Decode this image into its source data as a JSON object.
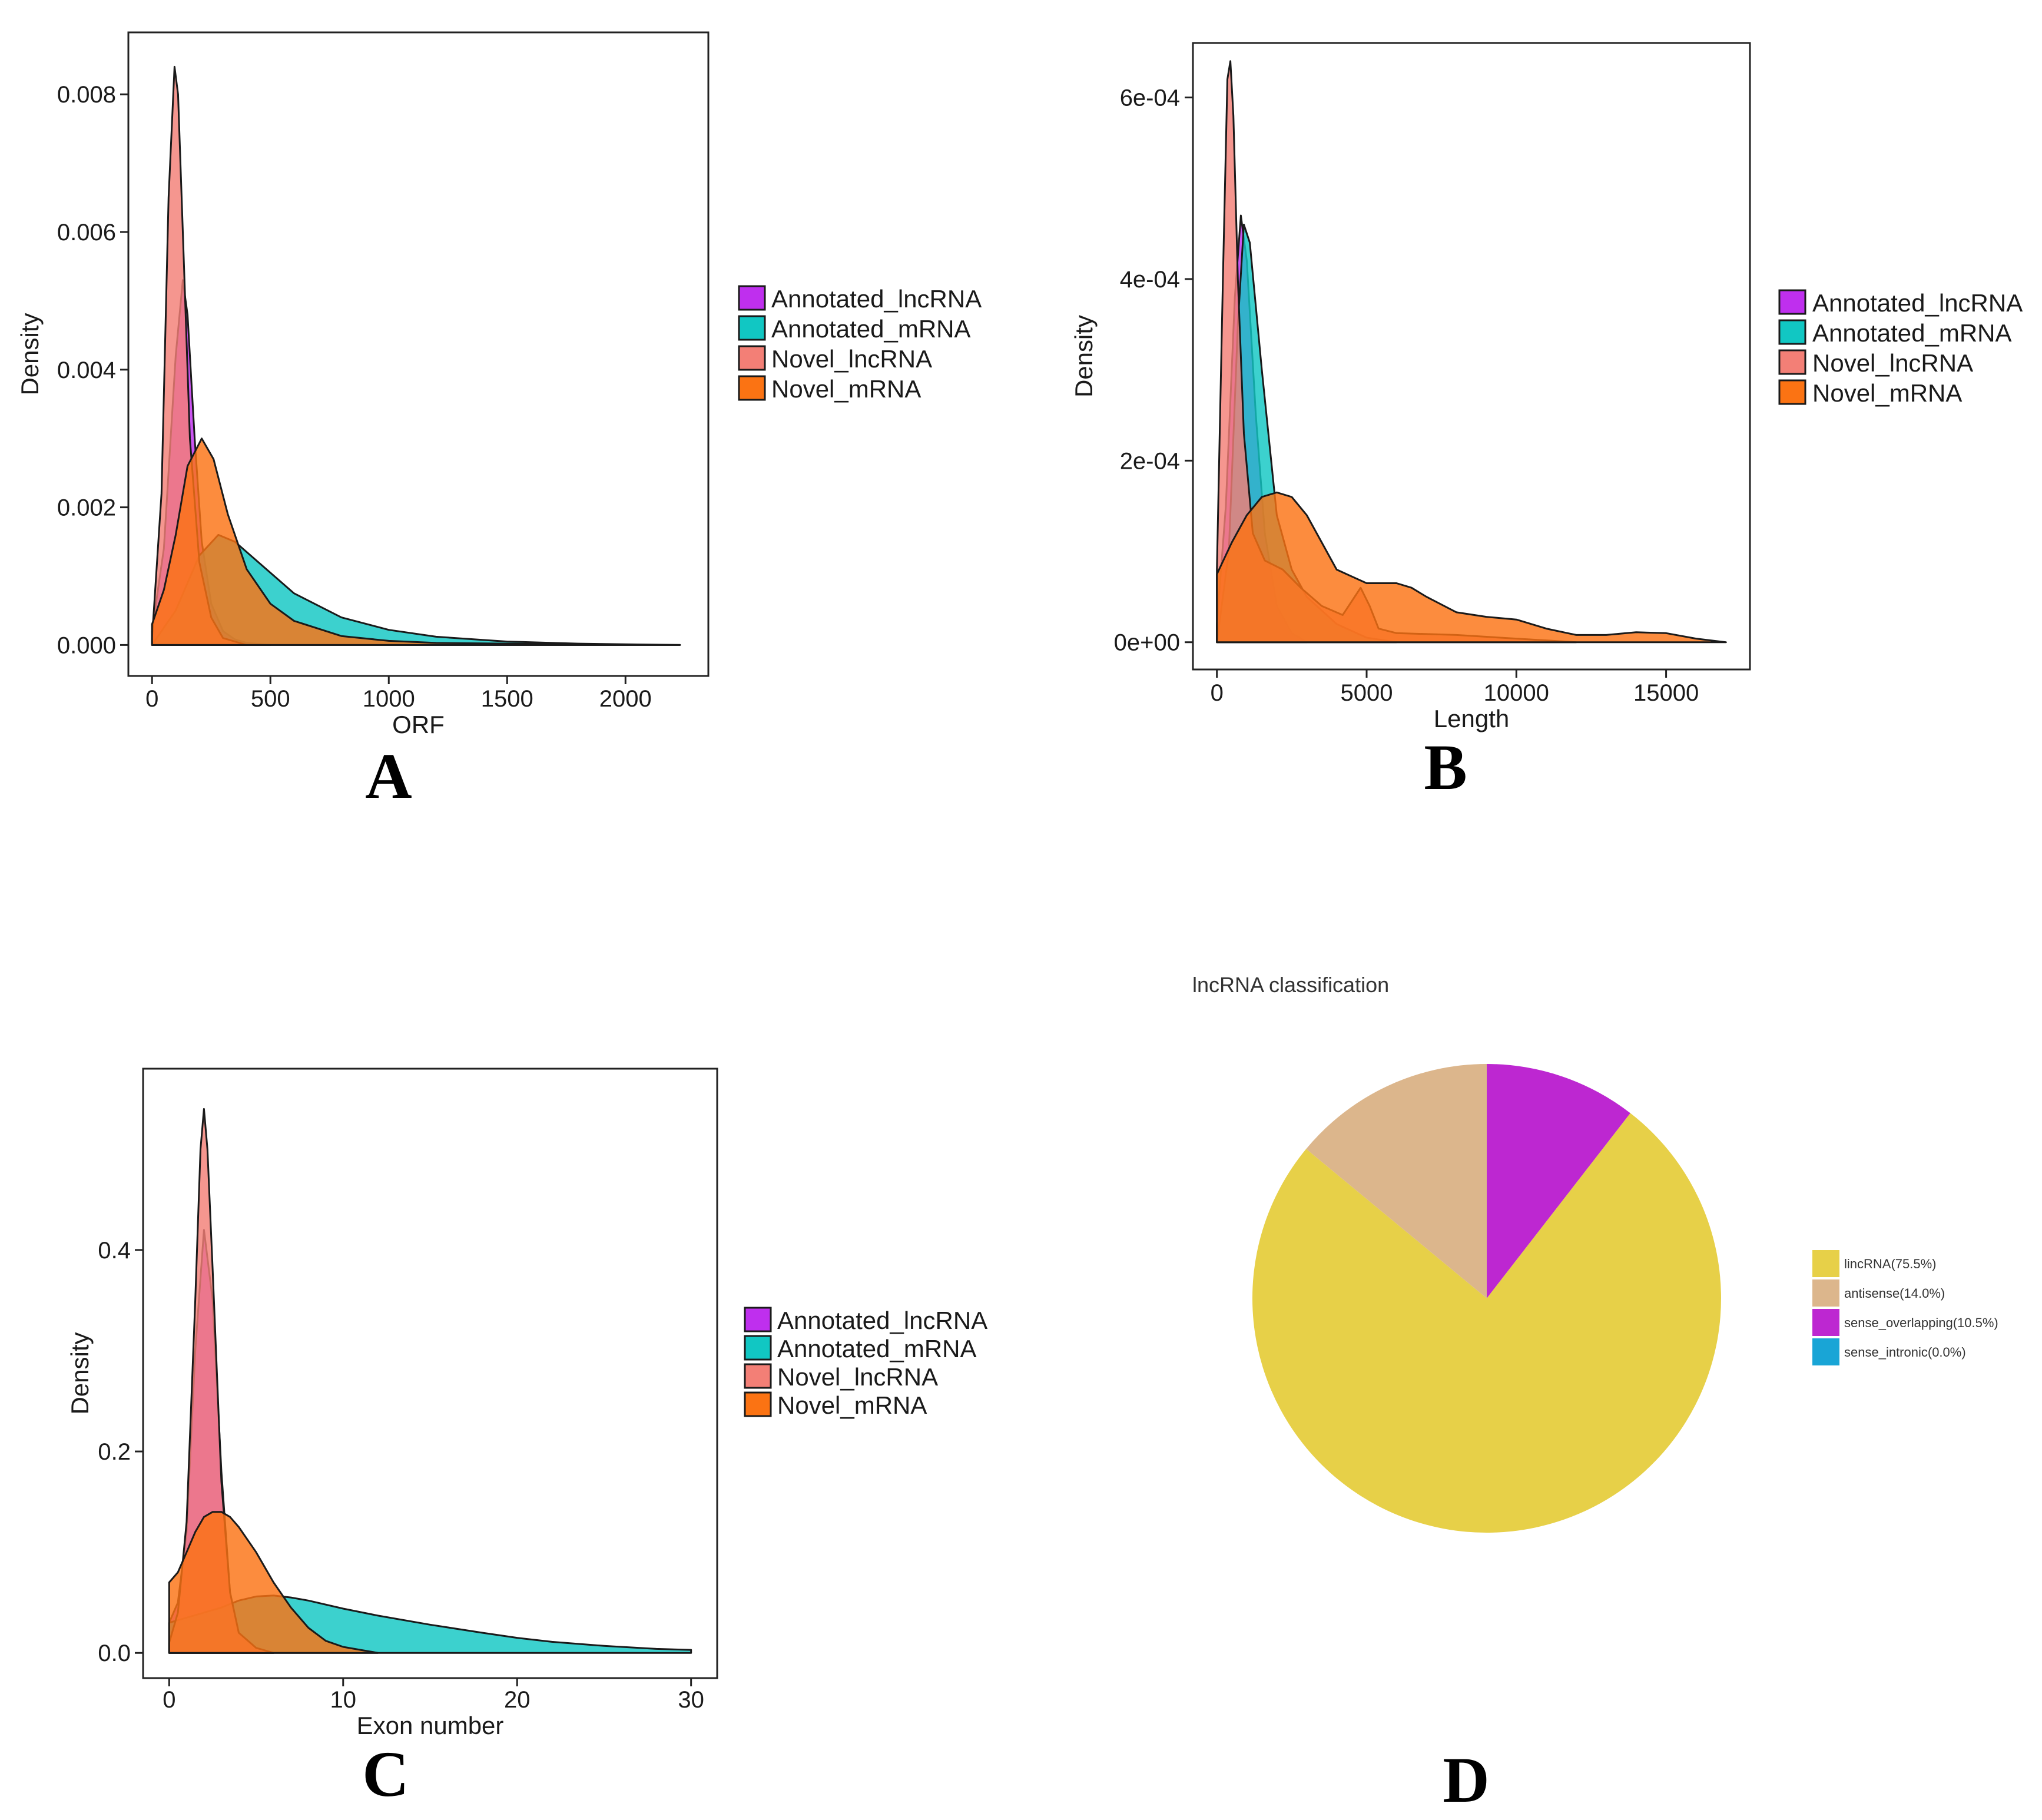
{
  "chart_data": [
    {
      "panel": "A",
      "type": "area",
      "xlabel": "ORF",
      "ylabel": "Density",
      "xlim": [
        -100,
        2350
      ],
      "ylim": [
        -0.00045,
        0.0089
      ],
      "x_ticks": [
        0,
        500,
        1000,
        1500,
        2000
      ],
      "x_tick_labels": [
        "0",
        "500",
        "1000",
        "1500",
        "2000"
      ],
      "y_ticks": [
        0,
        0.002,
        0.004,
        0.006,
        0.008
      ],
      "y_tick_labels": [
        "0.000",
        "0.002",
        "0.004",
        "0.006",
        "0.008"
      ],
      "grid": false,
      "legend_position": "right",
      "series": [
        {
          "name": "Annotated_lncRNA",
          "color": "#bf2fee",
          "x": [
            0,
            50,
            100,
            130,
            150,
            180,
            210,
            250,
            300,
            350,
            400,
            500
          ],
          "y": [
            0.0002,
            0.0014,
            0.0042,
            0.0053,
            0.0048,
            0.003,
            0.0015,
            0.0006,
            0.0002,
            8e-05,
            3e-05,
            0
          ]
        },
        {
          "name": "Annotated_mRNA",
          "color": "#11c7c3",
          "x": [
            0,
            100,
            200,
            280,
            350,
            450,
            600,
            800,
            1000,
            1200,
            1500,
            1800,
            2000,
            2230
          ],
          "y": [
            0,
            0.0005,
            0.0013,
            0.0016,
            0.0015,
            0.0012,
            0.00075,
            0.0004,
            0.00022,
            0.00012,
            5e-05,
            2e-05,
            1e-05,
            0
          ]
        },
        {
          "name": "Novel_lncRNA",
          "color": "#f37f76",
          "x": [
            0,
            40,
            70,
            95,
            110,
            130,
            160,
            200,
            250,
            300,
            400
          ],
          "y": [
            0.0001,
            0.0022,
            0.0065,
            0.0084,
            0.008,
            0.006,
            0.003,
            0.0012,
            0.0004,
            0.0001,
            0
          ]
        },
        {
          "name": "Novel_mRNA",
          "color": "#fb7313",
          "x": [
            0,
            50,
            100,
            150,
            210,
            260,
            320,
            400,
            500,
            600,
            800,
            1000,
            1200,
            1500,
            1800,
            2100,
            2230
          ],
          "y": [
            0.0003,
            0.0008,
            0.0016,
            0.0026,
            0.003,
            0.0027,
            0.0019,
            0.0011,
            0.0006,
            0.00035,
            0.00013,
            6e-05,
            3e-05,
            2e-05,
            1e-05,
            0,
            0
          ]
        }
      ]
    },
    {
      "panel": "B",
      "type": "area",
      "xlabel": "Length",
      "ylabel": "Density",
      "xlim": [
        -800,
        17800
      ],
      "ylim": [
        -3e-05,
        0.00066
      ],
      "x_ticks": [
        0,
        5000,
        10000,
        15000
      ],
      "x_tick_labels": [
        "0",
        "5000",
        "10000",
        "15000"
      ],
      "y_ticks": [
        0,
        0.0002,
        0.0004,
        0.0006
      ],
      "y_tick_labels": [
        "0e+00",
        "2e-04",
        "4e-04",
        "6e-04"
      ],
      "grid": false,
      "legend_position": "right",
      "series": [
        {
          "name": "Annotated_lncRNA",
          "color": "#bf2fee",
          "x": [
            0,
            300,
            600,
            800,
            1000,
            1300,
            1600,
            2000,
            2500,
            3000
          ],
          "y": [
            2e-05,
            0.00015,
            0.00038,
            0.00047,
            0.00042,
            0.00025,
            0.00012,
            4e-05,
            1e-05,
            0
          ]
        },
        {
          "name": "Annotated_mRNA",
          "color": "#11c7c3",
          "x": [
            0,
            400,
            700,
            900,
            1100,
            1500,
            2000,
            2500,
            3000,
            4000,
            5000,
            6000
          ],
          "y": [
            0,
            0.0001,
            0.00035,
            0.00046,
            0.00044,
            0.0003,
            0.00014,
            8e-05,
            5e-05,
            2e-05,
            5e-06,
            0
          ]
        },
        {
          "name": "Novel_lncRNA",
          "color": "#f37f76",
          "x": [
            0,
            200,
            350,
            450,
            550,
            700,
            900,
            1200,
            1600,
            2200,
            2800,
            3500,
            4200,
            4800,
            5100,
            5400,
            6000,
            8000,
            10000,
            12000
          ],
          "y": [
            8e-05,
            0.0004,
            0.00062,
            0.00064,
            0.00058,
            0.0004,
            0.00023,
            0.00012,
            9e-05,
            8e-05,
            6e-05,
            4e-05,
            3e-05,
            6e-05,
            4e-05,
            1.5e-05,
            1e-05,
            8e-06,
            4e-06,
            0
          ]
        },
        {
          "name": "Novel_mRNA",
          "color": "#fb7313",
          "x": [
            0,
            500,
            1000,
            1500,
            2000,
            2500,
            3000,
            3500,
            4000,
            5000,
            6000,
            6500,
            7000,
            8000,
            9000,
            10000,
            11000,
            12000,
            13000,
            14000,
            15000,
            16000,
            17000
          ],
          "y": [
            7.5e-05,
            0.00011,
            0.00014,
            0.00016,
            0.000165,
            0.00016,
            0.00014,
            0.00011,
            8e-05,
            6.5e-05,
            6.5e-05,
            6e-05,
            5e-05,
            3.3e-05,
            2.8e-05,
            2.5e-05,
            1.5e-05,
            8e-06,
            8e-06,
            1.1e-05,
            1e-05,
            4e-06,
            0
          ]
        }
      ]
    },
    {
      "panel": "C",
      "type": "area",
      "xlabel": "Exon number",
      "ylabel": "Density",
      "xlim": [
        -1.5,
        31.5
      ],
      "ylim": [
        -0.025,
        0.58
      ],
      "x_ticks": [
        0,
        10,
        20,
        30
      ],
      "x_tick_labels": [
        "0",
        "10",
        "20",
        "30"
      ],
      "y_ticks": [
        0,
        0.2,
        0.4
      ],
      "y_tick_labels": [
        "0.0",
        "0.2",
        "0.4"
      ],
      "grid": false,
      "legend_position": "right",
      "series": [
        {
          "name": "Annotated_lncRNA",
          "color": "#bf2fee",
          "x": [
            0,
            0.5,
            1,
            1.5,
            2,
            2.5,
            3,
            3.5,
            4,
            5,
            6
          ],
          "y": [
            0.03,
            0.05,
            0.12,
            0.3,
            0.42,
            0.35,
            0.18,
            0.06,
            0.02,
            0.005,
            0
          ]
        },
        {
          "name": "Annotated_mRNA",
          "color": "#11c7c3",
          "x": [
            0,
            1,
            2,
            3,
            4,
            5,
            6,
            7,
            8,
            10,
            12,
            15,
            18,
            20,
            22,
            25,
            28,
            30
          ],
          "y": [
            0.03,
            0.035,
            0.04,
            0.045,
            0.052,
            0.056,
            0.057,
            0.055,
            0.052,
            0.044,
            0.037,
            0.028,
            0.02,
            0.015,
            0.011,
            0.007,
            0.004,
            0.003
          ]
        },
        {
          "name": "Novel_lncRNA",
          "color": "#f37f76",
          "x": [
            0,
            0.5,
            1,
            1.5,
            1.8,
            2,
            2.2,
            2.5,
            3,
            3.5,
            4,
            5,
            6
          ],
          "y": [
            0.01,
            0.04,
            0.13,
            0.35,
            0.5,
            0.54,
            0.5,
            0.38,
            0.17,
            0.06,
            0.02,
            0.005,
            0
          ]
        },
        {
          "name": "Novel_mRNA",
          "color": "#fb7313",
          "x": [
            0,
            0.5,
            1,
            1.5,
            2,
            2.5,
            3,
            3.5,
            4,
            5,
            6,
            7,
            8,
            9,
            10,
            11,
            12
          ],
          "y": [
            0.07,
            0.08,
            0.1,
            0.12,
            0.135,
            0.14,
            0.14,
            0.135,
            0.125,
            0.1,
            0.07,
            0.045,
            0.025,
            0.012,
            0.006,
            0.003,
            0
          ]
        }
      ]
    },
    {
      "panel": "D",
      "type": "pie",
      "title": "lncRNA classification",
      "legend_position": "right",
      "slices": [
        {
          "name": "lincRNA",
          "label": "lincRNA(75.5%)",
          "value": 75.5,
          "color": "#e7d048"
        },
        {
          "name": "antisense",
          "label": "antisense(14.0%)",
          "value": 14.0,
          "color": "#dcb68c"
        },
        {
          "name": "sense_overlapping",
          "label": "sense_overlapping(10.5%)",
          "value": 10.5,
          "color": "#bd27d1"
        },
        {
          "name": "sense_intronic",
          "label": "sense_intronic(0.0%)",
          "value": 0.0,
          "color": "#19a5d6"
        }
      ]
    }
  ],
  "panel_letters": [
    "A",
    "B",
    "C",
    "D"
  ]
}
